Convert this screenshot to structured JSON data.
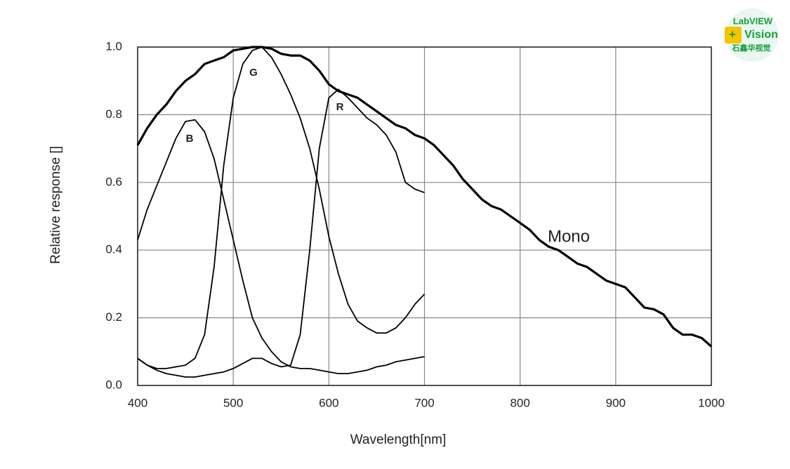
{
  "chart_data": {
    "type": "line",
    "xlabel": "Wavelength[nm]",
    "ylabel": "Relative response []",
    "x": [
      400,
      410,
      420,
      430,
      440,
      450,
      460,
      470,
      480,
      490,
      500,
      510,
      520,
      530,
      540,
      550,
      560,
      570,
      580,
      590,
      600,
      610,
      620,
      630,
      640,
      650,
      660,
      670,
      680,
      690,
      700,
      710,
      720,
      730,
      740,
      750,
      760,
      770,
      780,
      790,
      800,
      810,
      820,
      830,
      840,
      850,
      860,
      870,
      880,
      890,
      900,
      910,
      920,
      930,
      940,
      950,
      960,
      970,
      980,
      990,
      1000
    ],
    "series": [
      {
        "name": "Mono",
        "color": "#000000",
        "linewidth": 3.2,
        "values": [
          0.71,
          0.76,
          0.8,
          0.83,
          0.87,
          0.9,
          0.92,
          0.95,
          0.96,
          0.97,
          0.99,
          0.995,
          1.0,
          1.0,
          0.995,
          0.98,
          0.975,
          0.975,
          0.96,
          0.93,
          0.89,
          0.87,
          0.86,
          0.85,
          0.83,
          0.81,
          0.79,
          0.77,
          0.76,
          0.74,
          0.73,
          0.71,
          0.68,
          0.65,
          0.61,
          0.58,
          0.55,
          0.53,
          0.52,
          0.5,
          0.48,
          0.46,
          0.43,
          0.41,
          0.4,
          0.38,
          0.36,
          0.35,
          0.33,
          0.31,
          0.3,
          0.29,
          0.26,
          0.23,
          0.225,
          0.21,
          0.17,
          0.15,
          0.15,
          0.14,
          0.115
        ]
      },
      {
        "name": "B",
        "color": "#000000",
        "linewidth": 1.8,
        "values": [
          0.43,
          0.52,
          0.59,
          0.66,
          0.73,
          0.78,
          0.785,
          0.75,
          0.67,
          0.55,
          0.43,
          0.31,
          0.2,
          0.14,
          0.1,
          0.07,
          0.055,
          0.05,
          0.05,
          0.045,
          0.04,
          0.035,
          0.035,
          0.04,
          0.045,
          0.055,
          0.06,
          0.07,
          0.075,
          0.08,
          0.085,
          null,
          null,
          null,
          null,
          null,
          null,
          null,
          null,
          null,
          null,
          null,
          null,
          null,
          null,
          null,
          null,
          null,
          null,
          null,
          null,
          null,
          null,
          null,
          null,
          null,
          null,
          null,
          null,
          null,
          null
        ]
      },
      {
        "name": "G",
        "color": "#000000",
        "linewidth": 1.8,
        "values": [
          0.08,
          0.06,
          0.05,
          0.05,
          0.055,
          0.06,
          0.08,
          0.15,
          0.35,
          0.65,
          0.85,
          0.95,
          0.99,
          1.0,
          0.97,
          0.92,
          0.86,
          0.79,
          0.7,
          0.58,
          0.44,
          0.33,
          0.24,
          0.19,
          0.17,
          0.155,
          0.155,
          0.17,
          0.2,
          0.24,
          0.27,
          null,
          null,
          null,
          null,
          null,
          null,
          null,
          null,
          null,
          null,
          null,
          null,
          null,
          null,
          null,
          null,
          null,
          null,
          null,
          null,
          null,
          null,
          null,
          null,
          null,
          null,
          null,
          null,
          null,
          null
        ]
      },
      {
        "name": "R",
        "color": "#000000",
        "linewidth": 1.8,
        "values": [
          0.08,
          0.06,
          0.045,
          0.035,
          0.03,
          0.025,
          0.025,
          0.03,
          0.035,
          0.04,
          0.05,
          0.065,
          0.08,
          0.08,
          0.065,
          0.055,
          0.06,
          0.15,
          0.4,
          0.7,
          0.85,
          0.875,
          0.85,
          0.82,
          0.79,
          0.77,
          0.74,
          0.69,
          0.6,
          0.58,
          0.57,
          null,
          null,
          null,
          null,
          null,
          null,
          null,
          null,
          null,
          null,
          null,
          null,
          null,
          null,
          null,
          null,
          null,
          null,
          null,
          null,
          null,
          null,
          null,
          null,
          null,
          null,
          null,
          null,
          null,
          null
        ]
      }
    ],
    "xlim": [
      400,
      1000
    ],
    "xticks": [
      400,
      500,
      600,
      700,
      800,
      900,
      1000
    ],
    "ylim": [
      0,
      1
    ],
    "yticks": [
      {
        "value": 0,
        "label": "0.0"
      },
      0.2,
      0.4,
      0.6,
      0.8,
      {
        "value": 1,
        "label": "1.0"
      }
    ],
    "grid": true
  },
  "logo": {
    "line1": "LabVIEW",
    "plus": "+",
    "line2": "Vision",
    "line3": "石鑫华视觉"
  }
}
